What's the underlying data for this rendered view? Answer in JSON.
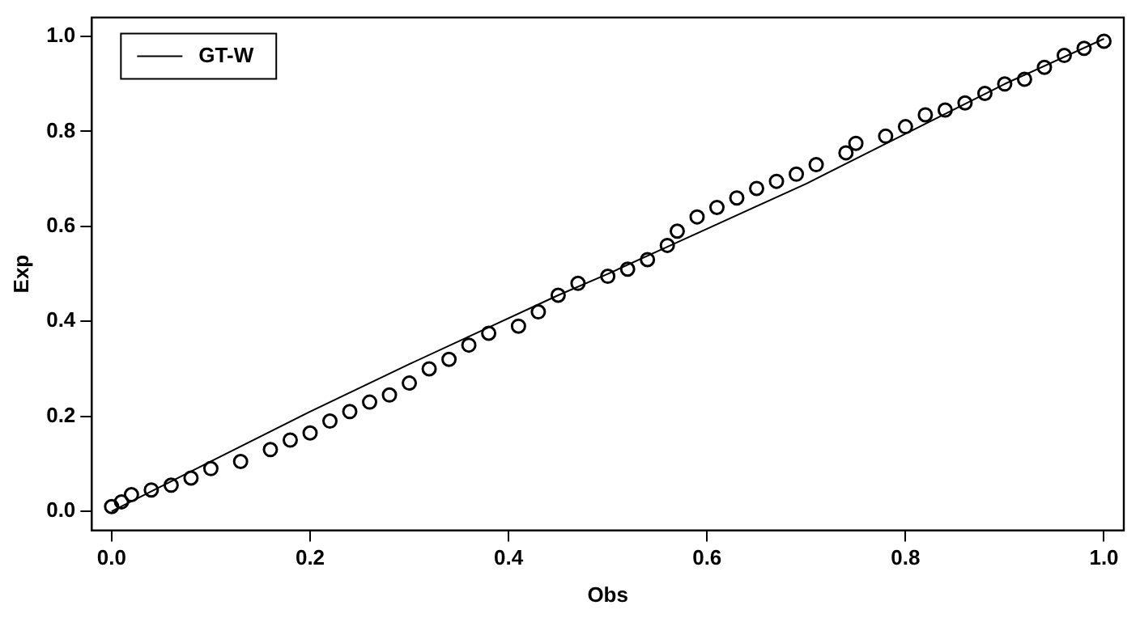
{
  "chart_data": {
    "type": "scatter",
    "xlabel": "Obs",
    "ylabel": "Exp",
    "xlim": [
      -0.02,
      1.02
    ],
    "ylim": [
      -0.04,
      1.04
    ],
    "xticks": [
      {
        "value": 0,
        "label": "0.0"
      },
      {
        "value": 0.2,
        "label": "0.2"
      },
      {
        "value": 0.4,
        "label": "0.4"
      },
      {
        "value": 0.6,
        "label": "0.6"
      },
      {
        "value": 0.8,
        "label": "0.8"
      },
      {
        "value": 1,
        "label": "1.0"
      }
    ],
    "yticks": [
      {
        "value": 0,
        "label": "0.0"
      },
      {
        "value": 0.2,
        "label": "0.2"
      },
      {
        "value": 0.4,
        "label": "0.4"
      },
      {
        "value": 0.6,
        "label": "0.6"
      },
      {
        "value": 0.8,
        "label": "0.8"
      },
      {
        "value": 1,
        "label": "1.0"
      }
    ],
    "grid": false,
    "legend": "top left",
    "marker": "circle",
    "series": [
      {
        "color": "#000000",
        "x": [
          0,
          0.01,
          0.02,
          0.04,
          0.06,
          0.08,
          0.1,
          0.13,
          0.16,
          0.18,
          0.2,
          0.22,
          0.24,
          0.26,
          0.28,
          0.3,
          0.32,
          0.34,
          0.36,
          0.38,
          0.41,
          0.43,
          0.45,
          0.47,
          0.5,
          0.52,
          0.54,
          0.56,
          0.57,
          0.59,
          0.61,
          0.63,
          0.65,
          0.67,
          0.69,
          0.71,
          0.74,
          0.75,
          0.78,
          0.8,
          0.82,
          0.84,
          0.86,
          0.88,
          0.9,
          0.92,
          0.94,
          0.96,
          0.98,
          1.0
        ],
        "values": [
          0.01,
          0.02,
          0.035,
          0.045,
          0.055,
          0.07,
          0.09,
          0.105,
          0.13,
          0.15,
          0.165,
          0.19,
          0.21,
          0.23,
          0.245,
          0.27,
          0.3,
          0.32,
          0.35,
          0.375,
          0.39,
          0.42,
          0.455,
          0.48,
          0.495,
          0.51,
          0.53,
          0.56,
          0.59,
          0.62,
          0.64,
          0.66,
          0.68,
          0.695,
          0.71,
          0.73,
          0.755,
          0.775,
          0.79,
          0.81,
          0.835,
          0.845,
          0.86,
          0.88,
          0.9,
          0.91,
          0.935,
          0.96,
          0.975,
          0.99
        ]
      },
      {
        "type": "line",
        "name": "GT-W",
        "color": "#000000",
        "marker": "none",
        "line_style": "solid",
        "x": [
          0,
          0.1,
          0.2,
          0.3,
          0.45,
          0.5,
          0.6,
          0.7,
          0.8,
          0.9,
          1.0
        ],
        "values": [
          0,
          0.105,
          0.21,
          0.31,
          0.455,
          0.5,
          0.595,
          0.69,
          0.795,
          0.9,
          0.995
        ]
      }
    ]
  }
}
